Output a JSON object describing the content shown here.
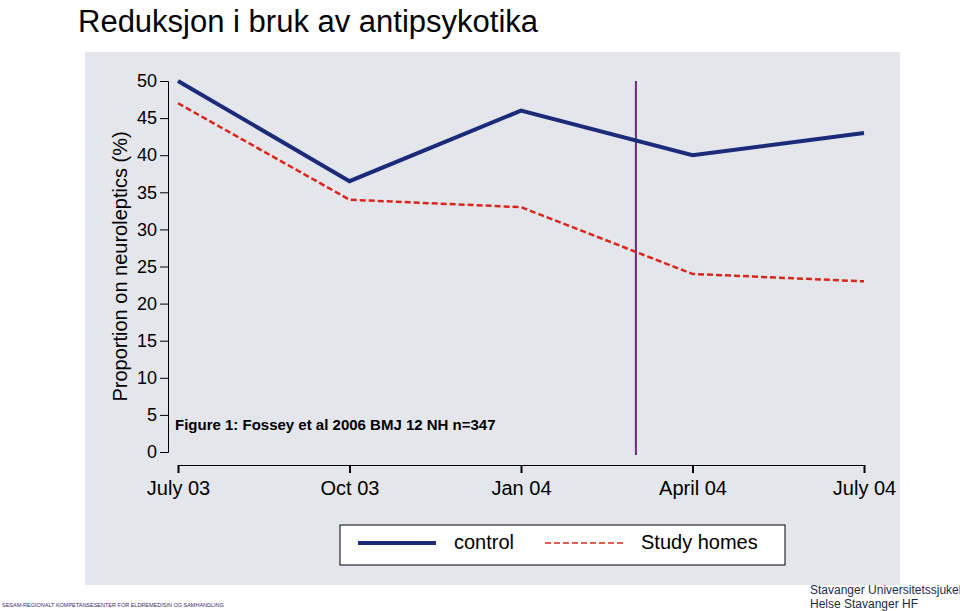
{
  "chart_data": {
    "type": "line",
    "title": "Reduksjon i bruk av antipsykotika",
    "y_label": "Proportion on neuroleptics (%)",
    "annotation": "Figure 1: Fossey et al 2006 BMJ 12 NH n=347",
    "categories": [
      "July 03",
      "Oct 03",
      "Jan 04",
      "April 04",
      "July 04"
    ],
    "series": [
      {
        "name": "control",
        "color": "#1c2a7a",
        "line_style": "solid",
        "values": [
          50,
          36.5,
          46,
          40,
          43
        ]
      },
      {
        "name": "Study homes",
        "color": "#d9261c",
        "line_style": "dashed",
        "values": [
          47,
          34,
          33,
          24,
          23
        ]
      }
    ],
    "vlines": [
      {
        "x": 2.67,
        "color": "#6a2a7e"
      }
    ],
    "ylim": [
      0,
      50
    ],
    "yticks": [
      0,
      5,
      10,
      15,
      20,
      25,
      30,
      35,
      40,
      45,
      50
    ],
    "grid": false,
    "legend": "bottom"
  },
  "footer": {
    "left": "SESAM-REGIONALT KOMPETANSESENTER FOR ELDREMEDISIN OG SAMHANDLING",
    "right": [
      "Stavanger Universitetssjukehus",
      "Helse Stavanger HF"
    ]
  }
}
